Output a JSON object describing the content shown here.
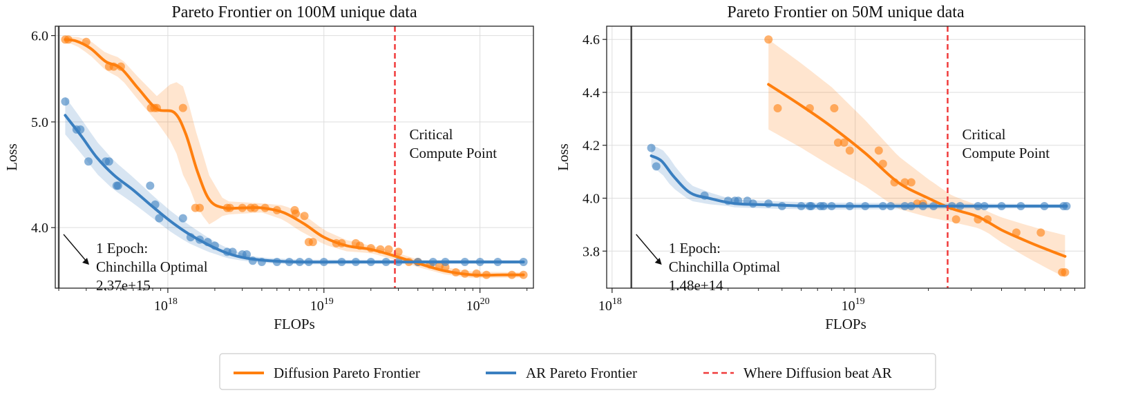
{
  "colors": {
    "diffusion": "#ff7f0e",
    "ar": "#3a7fc0",
    "critical": "#f03a3a",
    "epoch_line": "#444444",
    "grid": "#dddddd"
  },
  "legend": {
    "diffusion_label": "Diffusion Pareto Frontier",
    "ar_label": "AR Pareto Frontier",
    "critical_label": "Where Diffusion beat AR"
  },
  "chart_data": [
    {
      "type": "scatter",
      "title": "Pareto Frontier on 100M unique data",
      "xlabel": "FLOPs",
      "ylabel": "Loss",
      "xscale": "log",
      "yscale": "log",
      "xlim": [
        1.9e+17,
        2.2e+20
      ],
      "ylim": [
        3.52,
        6.12
      ],
      "xticks": [
        {
          "value": 1e+18,
          "base": "10",
          "exp": "18"
        },
        {
          "value": 1e+19,
          "base": "10",
          "exp": "19"
        },
        {
          "value": 1e+20,
          "base": "10",
          "exp": "20"
        }
      ],
      "yticks": [
        {
          "value": 4.0,
          "label": "4.0"
        },
        {
          "value": 5.0,
          "label": "5.0"
        },
        {
          "value": 6.0,
          "label": "6.0"
        }
      ],
      "epoch_x": 2e+17,
      "critical_x": 2.85e+19,
      "critical_text": [
        "Critical",
        "Compute Point"
      ],
      "epoch_text": [
        "1 Epoch:",
        "Chinchilla Optimal",
        "2.37e+15"
      ],
      "series": [
        {
          "name": "Diffusion",
          "points": [
            [
              2.2e+17,
              5.95
            ],
            [
              2.3e+17,
              5.95
            ],
            [
              3e+17,
              5.92
            ],
            [
              4.2e+17,
              5.62
            ],
            [
              4.5e+17,
              5.62
            ],
            [
              5e+17,
              5.62
            ],
            [
              7.8e+17,
              5.15
            ],
            [
              8.2e+17,
              5.15
            ],
            [
              8.5e+17,
              5.15
            ],
            [
              1.25e+18,
              5.15
            ],
            [
              1.5e+18,
              4.17
            ],
            [
              1.6e+18,
              4.17
            ],
            [
              2.4e+18,
              4.17
            ],
            [
              2.5e+18,
              4.17
            ],
            [
              3e+18,
              4.17
            ],
            [
              3.4e+18,
              4.17
            ],
            [
              3.6e+18,
              4.17
            ],
            [
              4.2e+18,
              4.17
            ],
            [
              5e+18,
              4.15
            ],
            [
              6.5e+18,
              4.15
            ],
            [
              6.6e+18,
              4.12
            ],
            [
              7.5e+18,
              4.1
            ],
            [
              8e+18,
              3.88
            ],
            [
              8.5e+18,
              3.88
            ],
            [
              1.2e+19,
              3.87
            ],
            [
              1.3e+19,
              3.87
            ],
            [
              1.6e+19,
              3.87
            ],
            [
              1.7e+19,
              3.85
            ],
            [
              2e+19,
              3.83
            ],
            [
              2.3e+19,
              3.82
            ],
            [
              2.6e+19,
              3.82
            ],
            [
              3e+19,
              3.8
            ],
            [
              3.5e+19,
              3.72
            ],
            [
              4e+19,
              3.72
            ],
            [
              4.8e+19,
              3.7
            ],
            [
              5.5e+19,
              3.69
            ],
            [
              6e+19,
              3.68
            ],
            [
              7e+19,
              3.64
            ],
            [
              8e+19,
              3.63
            ],
            [
              9.5e+19,
              3.63
            ],
            [
              1.1e+20,
              3.62
            ],
            [
              1.6e+20,
              3.62
            ],
            [
              1.9e+20,
              3.62
            ]
          ],
          "fit": [
            [
              2.2e+17,
              5.95
            ],
            [
              2.6e+17,
              5.93
            ],
            [
              3.2e+17,
              5.84
            ],
            [
              4e+17,
              5.68
            ],
            [
              5e+17,
              5.6
            ],
            [
              6.5e+17,
              5.36
            ],
            [
              8.5e+17,
              5.14
            ],
            [
              1.1e+18,
              5.1
            ],
            [
              1.3e+18,
              4.88
            ],
            [
              1.55e+18,
              4.5
            ],
            [
              1.85e+18,
              4.24
            ],
            [
              2.3e+18,
              4.17
            ],
            [
              3e+18,
              4.17
            ],
            [
              4e+18,
              4.17
            ],
            [
              5.5e+18,
              4.13
            ],
            [
              7.5e+18,
              4.03
            ],
            [
              1e+19,
              3.92
            ],
            [
              1.4e+19,
              3.85
            ],
            [
              2e+19,
              3.82
            ],
            [
              2.8e+19,
              3.77
            ],
            [
              4e+19,
              3.71
            ],
            [
              6e+19,
              3.65
            ],
            [
              9e+19,
              3.62
            ],
            [
              1.4e+20,
              3.62
            ],
            [
              1.9e+20,
              3.62
            ]
          ],
          "band": [
            [
              2.2e+17,
              0.03
            ],
            [
              3.2e+17,
              0.09
            ],
            [
              5e+17,
              0.12
            ],
            [
              8.5e+17,
              0.14
            ],
            [
              1.25e+18,
              0.46
            ],
            [
              1.6e+18,
              0.32
            ],
            [
              2.3e+18,
              0.06
            ],
            [
              4e+18,
              0.04
            ],
            [
              7e+18,
              0.08
            ],
            [
              1e+19,
              0.06
            ],
            [
              2e+19,
              0.03
            ],
            [
              4e+19,
              0.03
            ],
            [
              1.9e+20,
              0.02
            ]
          ]
        },
        {
          "name": "AR",
          "points": [
            [
              2.2e+17,
              5.22
            ],
            [
              2.6e+17,
              4.92
            ],
            [
              2.75e+17,
              4.92
            ],
            [
              3.1e+17,
              4.6
            ],
            [
              4e+17,
              4.6
            ],
            [
              4.2e+17,
              4.6
            ],
            [
              4.7e+17,
              4.37
            ],
            [
              4.8e+17,
              4.37
            ],
            [
              7.7e+17,
              4.37
            ],
            [
              8.3e+17,
              4.2
            ],
            [
              8.8e+17,
              4.08
            ],
            [
              1.25e+18,
              4.08
            ],
            [
              1.4e+18,
              3.92
            ],
            [
              1.6e+18,
              3.9
            ],
            [
              1.8e+18,
              3.88
            ],
            [
              2e+18,
              3.85
            ],
            [
              2.4e+18,
              3.8
            ],
            [
              2.6e+18,
              3.8
            ],
            [
              3e+18,
              3.78
            ],
            [
              3.2e+18,
              3.78
            ],
            [
              3.5e+18,
              3.73
            ],
            [
              4e+18,
              3.72
            ],
            [
              5e+18,
              3.72
            ],
            [
              6e+18,
              3.72
            ],
            [
              7e+18,
              3.72
            ],
            [
              8e+18,
              3.72
            ],
            [
              1e+19,
              3.72
            ],
            [
              1.3e+19,
              3.72
            ],
            [
              1.6e+19,
              3.72
            ],
            [
              2e+19,
              3.72
            ],
            [
              2.5e+19,
              3.72
            ],
            [
              3e+19,
              3.72
            ],
            [
              4e+19,
              3.72
            ],
            [
              5e+19,
              3.72
            ],
            [
              6e+19,
              3.72
            ],
            [
              8e+19,
              3.72
            ],
            [
              1e+20,
              3.72
            ],
            [
              1.3e+20,
              3.72
            ],
            [
              1.9e+20,
              3.72
            ]
          ],
          "fit": [
            [
              2.2e+17,
              5.07
            ],
            [
              2.8e+17,
              4.85
            ],
            [
              3.5e+17,
              4.64
            ],
            [
              4.5e+17,
              4.47
            ],
            [
              6e+17,
              4.33
            ],
            [
              8e+17,
              4.18
            ],
            [
              1.05e+18,
              4.05
            ],
            [
              1.35e+18,
              3.95
            ],
            [
              1.8e+18,
              3.86
            ],
            [
              2.4e+18,
              3.79
            ],
            [
              3.2e+18,
              3.75
            ],
            [
              4.5e+18,
              3.73
            ],
            [
              7e+18,
              3.72
            ],
            [
              1.2e+19,
              3.72
            ],
            [
              2.5e+19,
              3.72
            ],
            [
              6e+19,
              3.72
            ],
            [
              1.9e+20,
              3.72
            ]
          ],
          "band": [
            [
              2.2e+17,
              0.2
            ],
            [
              3e+17,
              0.17
            ],
            [
              5e+17,
              0.13
            ],
            [
              8e+17,
              0.1
            ],
            [
              1.3e+18,
              0.08
            ],
            [
              2e+18,
              0.05
            ],
            [
              3.5e+18,
              0.02
            ],
            [
              1.9e+20,
              0.015
            ]
          ]
        }
      ]
    },
    {
      "type": "scatter",
      "title": "Pareto Frontier on 50M unique data",
      "xlabel": "FLOPs",
      "ylabel": "Loss",
      "xscale": "log",
      "yscale": "linear",
      "xlim": [
        9.5e+17,
        8.8e+19
      ],
      "ylim": [
        3.66,
        4.65
      ],
      "xticks": [
        {
          "value": 1e+18,
          "base": "10",
          "exp": "18"
        },
        {
          "value": 1e+19,
          "base": "10",
          "exp": "19"
        }
      ],
      "yticks": [
        {
          "value": 3.8,
          "label": "3.8"
        },
        {
          "value": 4.0,
          "label": "4.0"
        },
        {
          "value": 4.2,
          "label": "4.2"
        },
        {
          "value": 4.4,
          "label": "4.4"
        },
        {
          "value": 4.6,
          "label": "4.6"
        }
      ],
      "epoch_x": 1.2e+18,
      "critical_x": 2.4e+19,
      "critical_text": [
        "Critical",
        "Compute Point"
      ],
      "epoch_text": [
        "1 Epoch:",
        "Chinchilla Optimal",
        "1.48e+14"
      ],
      "series": [
        {
          "name": "Diffusion",
          "points": [
            [
              4.4e+18,
              4.6
            ],
            [
              4.8e+18,
              4.34
            ],
            [
              6.5e+18,
              4.34
            ],
            [
              8.2e+18,
              4.34
            ],
            [
              8.5e+18,
              4.21
            ],
            [
              9e+18,
              4.21
            ],
            [
              9.5e+18,
              4.18
            ],
            [
              1.25e+19,
              4.18
            ],
            [
              1.3e+19,
              4.13
            ],
            [
              1.45e+19,
              4.06
            ],
            [
              1.6e+19,
              4.06
            ],
            [
              1.7e+19,
              4.06
            ],
            [
              1.8e+19,
              3.98
            ],
            [
              1.9e+19,
              3.98
            ],
            [
              2.6e+19,
              3.92
            ],
            [
              3.2e+19,
              3.92
            ],
            [
              3.5e+19,
              3.92
            ],
            [
              4.6e+19,
              3.87
            ],
            [
              5.8e+19,
              3.87
            ],
            [
              7.1e+19,
              3.72
            ],
            [
              7.3e+19,
              3.72
            ]
          ],
          "fit": [
            [
              4.4e+18,
              4.43
            ],
            [
              6e+18,
              4.35
            ],
            [
              8e+18,
              4.27
            ],
            [
              1.1e+19,
              4.17
            ],
            [
              1.5e+19,
              4.06
            ],
            [
              2e+19,
              4.0
            ],
            [
              2.5e+19,
              3.96
            ],
            [
              3.2e+19,
              3.93
            ],
            [
              4e+19,
              3.88
            ],
            [
              5e+19,
              3.84
            ],
            [
              6e+19,
              3.81
            ],
            [
              7.3e+19,
              3.78
            ]
          ],
          "band": [
            [
              4.4e+18,
              0.17
            ],
            [
              8e+18,
              0.15
            ],
            [
              1.5e+19,
              0.1
            ],
            [
              2.5e+19,
              0.05
            ],
            [
              3.5e+19,
              0.04
            ],
            [
              5e+19,
              0.06
            ],
            [
              7.3e+19,
              0.08
            ]
          ]
        },
        {
          "name": "AR",
          "points": [
            [
              1.45e+18,
              4.19
            ],
            [
              1.52e+18,
              4.12
            ],
            [
              2.4e+18,
              4.01
            ],
            [
              3e+18,
              3.99
            ],
            [
              3.2e+18,
              3.99
            ],
            [
              3.3e+18,
              3.99
            ],
            [
              3.6e+18,
              3.99
            ],
            [
              3.8e+18,
              3.98
            ],
            [
              4.4e+18,
              3.98
            ],
            [
              5e+18,
              3.97
            ],
            [
              6e+18,
              3.97
            ],
            [
              6.5e+18,
              3.97
            ],
            [
              6.6e+18,
              3.97
            ],
            [
              7.2e+18,
              3.97
            ],
            [
              7.4e+18,
              3.97
            ],
            [
              8e+18,
              3.97
            ],
            [
              9.5e+18,
              3.97
            ],
            [
              1.1e+19,
              3.97
            ],
            [
              1.3e+19,
              3.97
            ],
            [
              1.4e+19,
              3.97
            ],
            [
              1.6e+19,
              3.97
            ],
            [
              1.7e+19,
              3.97
            ],
            [
              1.9e+19,
              3.97
            ],
            [
              2.1e+19,
              3.97
            ],
            [
              2.5e+19,
              3.97
            ],
            [
              2.7e+19,
              3.97
            ],
            [
              3.2e+19,
              3.97
            ],
            [
              3.4e+19,
              3.97
            ],
            [
              4e+19,
              3.97
            ],
            [
              4.8e+19,
              3.97
            ],
            [
              6e+19,
              3.97
            ],
            [
              7.2e+19,
              3.97
            ],
            [
              7.4e+19,
              3.97
            ]
          ],
          "fit": [
            [
              1.45e+18,
              4.16
            ],
            [
              1.6e+18,
              4.14
            ],
            [
              1.8e+18,
              4.08
            ],
            [
              2.1e+18,
              4.02
            ],
            [
              2.5e+18,
              4.0
            ],
            [
              3.2e+18,
              3.98
            ],
            [
              4.5e+18,
              3.975
            ],
            [
              7e+18,
              3.97
            ],
            [
              1.5e+19,
              3.97
            ],
            [
              3e+19,
              3.97
            ],
            [
              7.4e+19,
              3.97
            ]
          ],
          "band": [
            [
              1.45e+18,
              0.04
            ],
            [
              1.7e+18,
              0.05
            ],
            [
              2.1e+18,
              0.03
            ],
            [
              3e+18,
              0.015
            ],
            [
              7.4e+19,
              0.008
            ]
          ]
        }
      ]
    }
  ]
}
